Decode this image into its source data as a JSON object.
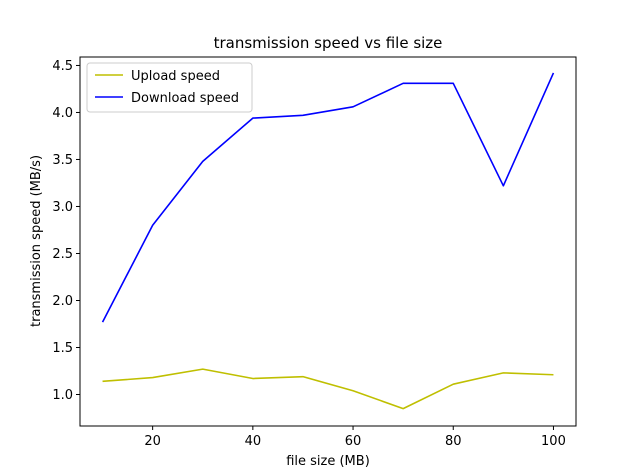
{
  "chart_data": {
    "type": "line",
    "title": "transmission speed vs file size",
    "xlabel": "file size (MB)",
    "ylabel": "transmission speed (MB/s)",
    "x": [
      10,
      20,
      30,
      40,
      50,
      60,
      70,
      80,
      90,
      100
    ],
    "xlim": [
      5.5,
      104.5
    ],
    "ylim": [
      0.665,
      4.59
    ],
    "xticks": [
      20,
      40,
      60,
      80,
      100
    ],
    "yticks": [
      1.0,
      1.5,
      2.0,
      2.5,
      3.0,
      3.5,
      4.0,
      4.5
    ],
    "xtick_labels": [
      "20",
      "40",
      "60",
      "80",
      "100"
    ],
    "ytick_labels": [
      "1.0",
      "1.5",
      "2.0",
      "2.5",
      "3.0",
      "3.5",
      "4.0",
      "4.5"
    ],
    "grid": false,
    "legend_position": "top-left",
    "series": [
      {
        "name": "Upload speed",
        "color": "#bfbf00",
        "values": [
          1.14,
          1.18,
          1.27,
          1.17,
          1.19,
          1.04,
          0.85,
          1.11,
          1.23,
          1.21
        ]
      },
      {
        "name": "Download speed",
        "color": "#0000ff",
        "values": [
          1.77,
          2.8,
          3.48,
          3.94,
          3.97,
          4.06,
          4.31,
          4.31,
          3.22,
          4.42
        ]
      }
    ]
  }
}
